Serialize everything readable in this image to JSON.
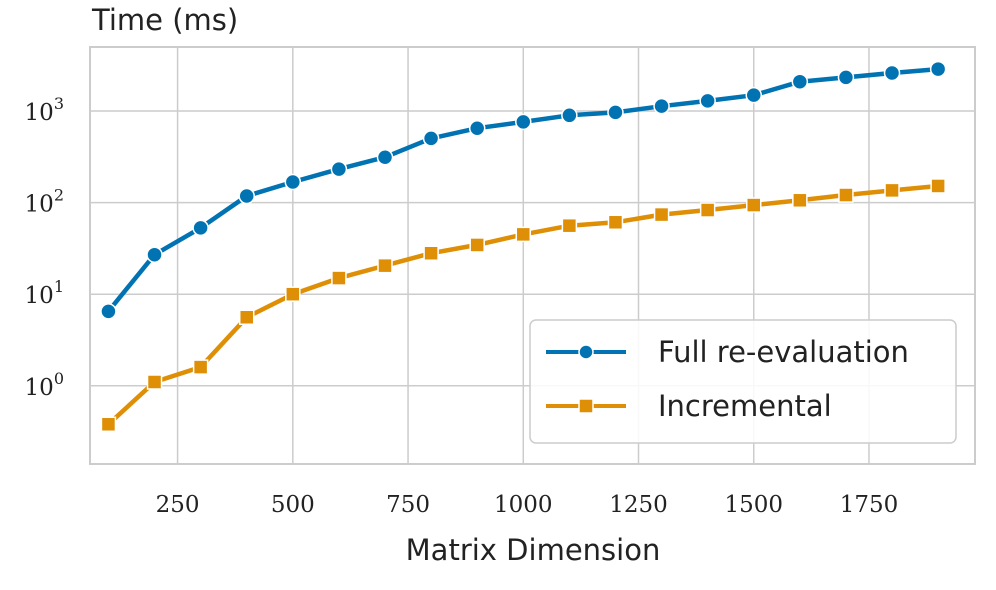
{
  "chart_data": {
    "type": "line",
    "title": "",
    "ylabel": "Time (ms)",
    "xlabel": "Matrix Dimension",
    "yscale": "log",
    "xlim": [
      60,
      1980
    ],
    "ylim": [
      0.14,
      5000
    ],
    "grid": true,
    "legend_position": "lower-right",
    "x_ticks": [
      250,
      500,
      750,
      1000,
      1250,
      1500,
      1750
    ],
    "x_tick_labels": [
      "250",
      "500",
      "750",
      "1000",
      "1250",
      "1500",
      "1750"
    ],
    "y_ticks": [
      1,
      10,
      100,
      1000
    ],
    "y_tick_base": [
      "10",
      "10",
      "10",
      "10"
    ],
    "y_tick_exp": [
      "0",
      "1",
      "2",
      "3"
    ],
    "x": [
      100,
      200,
      300,
      400,
      500,
      600,
      700,
      800,
      900,
      1000,
      1100,
      1200,
      1300,
      1400,
      1500,
      1600,
      1700,
      1800,
      1900
    ],
    "series": [
      {
        "name": "Full re-evaluation",
        "color": "#0173b2",
        "marker": "circle",
        "values": [
          6.5,
          27,
          53,
          118,
          168,
          232,
          313,
          503,
          649,
          761,
          898,
          966,
          1130,
          1290,
          1490,
          2090,
          2330,
          2600,
          2870
        ]
      },
      {
        "name": "Incremental",
        "color": "#de8f05",
        "marker": "square",
        "values": [
          0.38,
          1.1,
          1.6,
          5.6,
          10,
          15,
          20.5,
          28,
          34.5,
          45,
          56,
          61,
          74,
          83,
          94,
          106,
          121,
          136,
          152
        ]
      }
    ]
  }
}
